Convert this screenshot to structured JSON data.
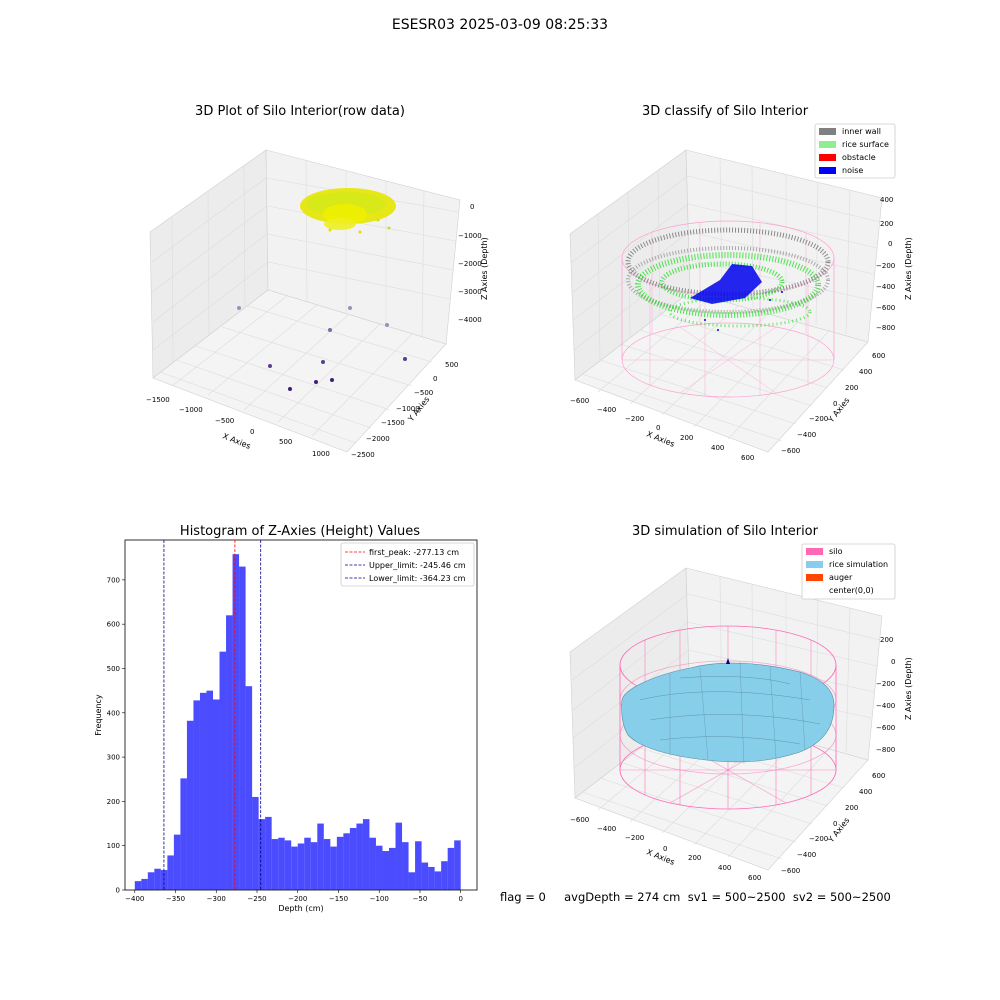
{
  "suptitle": "ESESR03 2025-03-09 08:25:33",
  "panel1": {
    "title": "3D Plot of Silo Interior(row data)",
    "xlabel": "X Axies",
    "ylabel": "Y Axies",
    "zlabel": "Z Axies (Depth)",
    "xticks": [
      "−1500",
      "−1000",
      "−500",
      "0",
      "500",
      "1000"
    ],
    "yticks": [
      "500",
      "0",
      "−500",
      "−1000",
      "−1500",
      "−2000",
      "−2500"
    ],
    "zticks": [
      "0",
      "−1000",
      "−2000",
      "−3000",
      "−4000"
    ]
  },
  "panel2": {
    "title": "3D classify of Silo Interior",
    "xlabel": "X Axies",
    "ylabel": "Y Axies",
    "zlabel": "Z Axies (Depth)",
    "xticks": [
      "−600",
      "−400",
      "−200",
      "0",
      "200",
      "400",
      "600"
    ],
    "yticks": [
      "600",
      "400",
      "200",
      "0",
      "−200",
      "−400",
      "−600"
    ],
    "zticks": [
      "400",
      "200",
      "0",
      "−200",
      "−400",
      "−600",
      "−800"
    ],
    "legend": [
      {
        "label": "inner wall",
        "color": "#808080"
      },
      {
        "label": "rice surface",
        "color": "#90ee90"
      },
      {
        "label": "obstacle",
        "color": "#ff0000"
      },
      {
        "label": "noise",
        "color": "#0000ff"
      }
    ]
  },
  "panel4": {
    "title": "3D simulation of Silo Interior",
    "xlabel": "X Axies",
    "ylabel": "Y Axies",
    "zlabel": "Z Axies (Depth)",
    "xticks": [
      "−600",
      "−400",
      "−200",
      "0",
      "200",
      "400",
      "600"
    ],
    "yticks": [
      "600",
      "400",
      "200",
      "0",
      "−200",
      "−400",
      "−600"
    ],
    "zticks": [
      "200",
      "0",
      "−200",
      "−400",
      "−600",
      "−800"
    ],
    "legend": [
      {
        "label": "silo",
        "color": "#ff69b4"
      },
      {
        "label": "rice simulation",
        "color": "#87ceeb"
      },
      {
        "label": "auger",
        "color": "#ff4500"
      },
      {
        "label": "center(0,0)",
        "color": ""
      }
    ]
  },
  "footer": "flag = 0     avgDepth = 274 cm  sv1 = 500~2500  sv2 = 500~2500",
  "chart_data": {
    "type": "bar",
    "title": "Histogram of Z-Axies (Height) Values",
    "xlabel": "Depth (cm)",
    "ylabel": "Frequency",
    "xlim": [
      -412,
      20
    ],
    "ylim": [
      0,
      790
    ],
    "xticks": [
      -400,
      -350,
      -300,
      -250,
      -200,
      -150,
      -100,
      -50,
      0
    ],
    "yticks": [
      0,
      100,
      200,
      300,
      400,
      500,
      600,
      700
    ],
    "bins": {
      "start": -400,
      "width": 8
    },
    "values": [
      20,
      25,
      40,
      48,
      45,
      78,
      125,
      252,
      382,
      428,
      445,
      450,
      430,
      538,
      620,
      758,
      730,
      460,
      210,
      160,
      165,
      115,
      118,
      112,
      98,
      105,
      118,
      108,
      150,
      115,
      98,
      120,
      128,
      140,
      150,
      160,
      118,
      100,
      88,
      95,
      152,
      108,
      40,
      110,
      62,
      52,
      42,
      65,
      95,
      112
    ],
    "bar_color": "#0000ff",
    "lines": [
      {
        "label": "first_peak: -277.13 cm",
        "x": -277.13,
        "color": "#ff0000"
      },
      {
        "label": "Upper_limit: -245.46 cm",
        "x": -245.46,
        "color": "#00008b"
      },
      {
        "label": "Lower_limit: -364.23 cm",
        "x": -364.23,
        "color": "#00008b"
      }
    ],
    "legend_position": "top-right"
  }
}
